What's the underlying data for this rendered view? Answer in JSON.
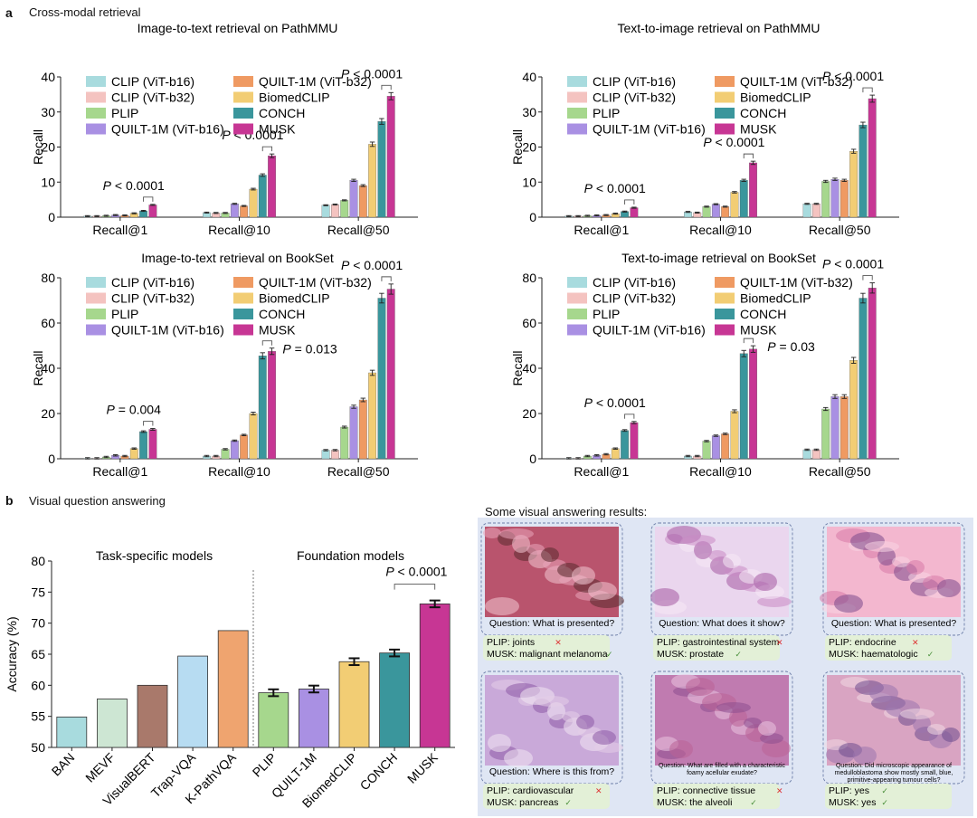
{
  "panel_a": {
    "letter": "a",
    "title": "Cross-modal retrieval"
  },
  "panel_b": {
    "letter": "b",
    "title": "Visual question answering",
    "examples_title": "Some visual answering results:"
  },
  "colors": {
    "CLIP (ViT-b16)": "#a8dbde",
    "CLIP (ViT-b32)": "#f4c3c0",
    "PLIP": "#a6d78d",
    "QUILT-1M (ViT-b16)": "#a990e3",
    "QUILT-1M (ViT-b32)": "#ef9a62",
    "BiomedCLIP": "#f2cd74",
    "CONCH": "#3a969c",
    "MUSK": "#c73694"
  },
  "legend_order": [
    "CLIP (ViT-b16)",
    "QUILT-1M (ViT-b32)",
    "CLIP (ViT-b32)",
    "BiomedCLIP",
    "PLIP",
    "CONCH",
    "QUILT-1M (ViT-b16)",
    "MUSK"
  ],
  "chart_data": [
    {
      "type": "bar",
      "title": "Image-to-text retrieval on PathMMU",
      "ylabel": "Recall",
      "ylim": [
        0,
        40
      ],
      "yticks": [
        0,
        10,
        20,
        30,
        40
      ],
      "categories": [
        "Recall@1",
        "Recall@10",
        "Recall@50"
      ],
      "series": [
        {
          "name": "CLIP (ViT-b16)",
          "values": [
            0.3,
            1.3,
            3.4
          ]
        },
        {
          "name": "CLIP (ViT-b32)",
          "values": [
            0.3,
            1.2,
            3.6
          ]
        },
        {
          "name": "PLIP",
          "values": [
            0.4,
            1.2,
            4.8
          ]
        },
        {
          "name": "QUILT-1M (ViT-b16)",
          "values": [
            0.6,
            3.8,
            10.5
          ]
        },
        {
          "name": "QUILT-1M (ViT-b32)",
          "values": [
            0.5,
            3.2,
            9.0
          ]
        },
        {
          "name": "BiomedCLIP",
          "values": [
            1.1,
            8.0,
            20.8
          ]
        },
        {
          "name": "CONCH",
          "values": [
            1.8,
            12.0,
            27.3
          ]
        },
        {
          "name": "MUSK",
          "values": [
            3.5,
            17.5,
            34.5
          ]
        }
      ],
      "annotations": [
        {
          "category": 0,
          "text": "P < 0.0001"
        },
        {
          "category": 1,
          "text": "P < 0.0001"
        },
        {
          "category": 2,
          "text": "P < 0.0001"
        }
      ]
    },
    {
      "type": "bar",
      "title": "Text-to-image retrieval on PathMMU",
      "ylabel": "Recall",
      "ylim": [
        0,
        40
      ],
      "yticks": [
        0,
        10,
        20,
        30,
        40
      ],
      "categories": [
        "Recall@1",
        "Recall@10",
        "Recall@50"
      ],
      "series": [
        {
          "name": "CLIP (ViT-b16)",
          "values": [
            0.3,
            1.5,
            3.8
          ]
        },
        {
          "name": "CLIP (ViT-b32)",
          "values": [
            0.3,
            1.3,
            3.8
          ]
        },
        {
          "name": "PLIP",
          "values": [
            0.4,
            3.0,
            10.2
          ]
        },
        {
          "name": "QUILT-1M (ViT-b16)",
          "values": [
            0.5,
            3.7,
            10.8
          ]
        },
        {
          "name": "QUILT-1M (ViT-b32)",
          "values": [
            0.6,
            3.0,
            10.5
          ]
        },
        {
          "name": "BiomedCLIP",
          "values": [
            1.0,
            7.1,
            18.8
          ]
        },
        {
          "name": "CONCH",
          "values": [
            1.6,
            10.5,
            26.3
          ]
        },
        {
          "name": "MUSK",
          "values": [
            2.7,
            15.5,
            33.8
          ]
        }
      ],
      "annotations": [
        {
          "category": 0,
          "text": "P < 0.0001"
        },
        {
          "category": 1,
          "text": "P < 0.0001"
        },
        {
          "category": 2,
          "text": "P < 0.0001"
        }
      ]
    },
    {
      "type": "bar",
      "title": "Image-to-text retrieval on BookSet",
      "ylabel": "Recall",
      "ylim": [
        0,
        80
      ],
      "yticks": [
        0,
        20,
        40,
        60,
        80
      ],
      "categories": [
        "Recall@1",
        "Recall@10",
        "Recall@50"
      ],
      "series": [
        {
          "name": "CLIP (ViT-b16)",
          "values": [
            0.2,
            1.2,
            3.8
          ]
        },
        {
          "name": "CLIP (ViT-b32)",
          "values": [
            0.2,
            1.2,
            3.8
          ]
        },
        {
          "name": "PLIP",
          "values": [
            0.8,
            4.2,
            14.0
          ]
        },
        {
          "name": "QUILT-1M (ViT-b16)",
          "values": [
            1.5,
            8.0,
            23.0
          ]
        },
        {
          "name": "QUILT-1M (ViT-b32)",
          "values": [
            1.2,
            10.5,
            26.0
          ]
        },
        {
          "name": "BiomedCLIP",
          "values": [
            4.5,
            20.0,
            38.0
          ]
        },
        {
          "name": "CONCH",
          "values": [
            12.0,
            45.5,
            71.0
          ]
        },
        {
          "name": "MUSK",
          "values": [
            13.0,
            47.5,
            75.0
          ]
        }
      ],
      "annotations": [
        {
          "category": 0,
          "text": "P = 0.004"
        },
        {
          "category": 1,
          "text": "P = 0.013"
        },
        {
          "category": 2,
          "text": "P < 0.0001"
        }
      ]
    },
    {
      "type": "bar",
      "title": "Text-to-image retrieval on BookSet",
      "ylabel": "Recall",
      "ylim": [
        0,
        80
      ],
      "yticks": [
        0,
        20,
        40,
        60,
        80
      ],
      "categories": [
        "Recall@1",
        "Recall@10",
        "Recall@50"
      ],
      "series": [
        {
          "name": "CLIP (ViT-b16)",
          "values": [
            0.2,
            1.2,
            4.0
          ]
        },
        {
          "name": "CLIP (ViT-b32)",
          "values": [
            0.2,
            1.2,
            4.0
          ]
        },
        {
          "name": "PLIP",
          "values": [
            1.2,
            7.8,
            22.0
          ]
        },
        {
          "name": "QUILT-1M (ViT-b16)",
          "values": [
            1.5,
            10.2,
            27.5
          ]
        },
        {
          "name": "QUILT-1M (ViT-b32)",
          "values": [
            2.0,
            11.0,
            27.5
          ]
        },
        {
          "name": "BiomedCLIP",
          "values": [
            4.5,
            21.0,
            43.5
          ]
        },
        {
          "name": "CONCH",
          "values": [
            12.5,
            46.5,
            71.0
          ]
        },
        {
          "name": "MUSK",
          "values": [
            16.0,
            48.5,
            75.5
          ]
        }
      ],
      "annotations": [
        {
          "category": 0,
          "text": "P < 0.0001"
        },
        {
          "category": 1,
          "text": "P = 0.03"
        },
        {
          "category": 2,
          "text": "P < 0.0001"
        }
      ]
    },
    {
      "type": "bar",
      "ylabel": "Accuracy (%)",
      "ylim": [
        50,
        80
      ],
      "yticks": [
        50,
        55,
        60,
        65,
        70,
        75,
        80
      ],
      "group_labels": [
        "Task-specific models",
        "Foundation models"
      ],
      "categories": [
        "BAN",
        "MEVF",
        "VisualBERT",
        "Trap-VQA",
        "K-PathVQA",
        "PLIP",
        "QUILT-1M",
        "BiomedCLIP",
        "CONCH",
        "MUSK"
      ],
      "values": [
        54.9,
        57.8,
        60.0,
        64.7,
        68.8,
        58.8,
        59.4,
        63.8,
        65.2,
        73.1
      ],
      "colors": [
        "#a8dbde",
        "#cde6d3",
        "#a9796b",
        "#b7dcf2",
        "#efa46f",
        "#a6d78d",
        "#a990e3",
        "#f2cd74",
        "#3a969c",
        "#c73694"
      ],
      "annotations": [
        {
          "between": [
            "CONCH",
            "MUSK"
          ],
          "text": "P < 0.0001"
        }
      ]
    }
  ],
  "examples": [
    {
      "question": "Question: What is presented?",
      "plip": "PLIP: joints",
      "plip_ok": false,
      "musk": "MUSK: malignant melanoma",
      "musk_ok": true
    },
    {
      "question": "Question: What does it show?",
      "plip": "PLIP: gastrointestinal system",
      "plip_ok": false,
      "musk": "MUSK: prostate",
      "musk_ok": true
    },
    {
      "question": "Question: What is presented?",
      "plip": "PLIP: endocrine",
      "plip_ok": false,
      "musk": "MUSK: haematologic",
      "musk_ok": true
    },
    {
      "question": "Question: Where is this from?",
      "plip": "PLIP: cardiovascular",
      "plip_ok": false,
      "musk": "MUSK: pancreas",
      "musk_ok": true
    },
    {
      "question": "Question: What are filled with a characteristic foamy acellular exudate?",
      "plip": "PLIP: connective tissue",
      "plip_ok": false,
      "musk": "MUSK: the alveoli",
      "musk_ok": true
    },
    {
      "question": "Question: Did microscopic appearance of medulloblastoma show mostly small, blue, primitive-appearing tumour cells?",
      "plip": "PLIP: yes",
      "plip_ok": true,
      "musk": "MUSK: yes",
      "musk_ok": true
    }
  ]
}
